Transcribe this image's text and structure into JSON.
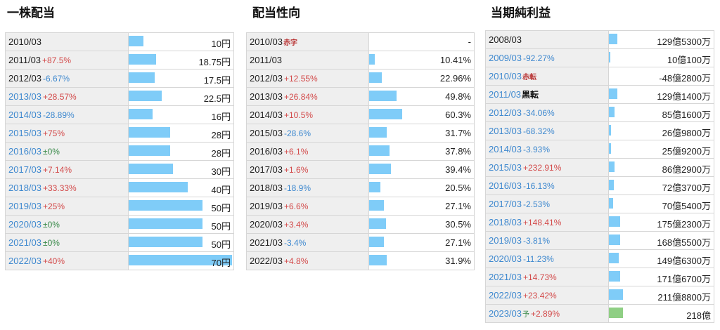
{
  "sections": [
    {
      "title": "一株配当",
      "rows": [
        {
          "year": "2010/03",
          "year_color": "black",
          "change": "",
          "change_type": "",
          "tag": "",
          "value": "10円",
          "bar": 0.143
        },
        {
          "year": "2011/03",
          "year_color": "black",
          "change": "+87.5%",
          "change_type": "pos",
          "tag": "",
          "value": "18.75円",
          "bar": 0.268
        },
        {
          "year": "2012/03",
          "year_color": "black",
          "change": "-6.67%",
          "change_type": "neg",
          "tag": "",
          "value": "17.5円",
          "bar": 0.25
        },
        {
          "year": "2013/03",
          "year_color": "blue",
          "change": "+28.57%",
          "change_type": "pos",
          "tag": "",
          "value": "22.5円",
          "bar": 0.321
        },
        {
          "year": "2014/03",
          "year_color": "blue",
          "change": "-28.89%",
          "change_type": "neg",
          "tag": "",
          "value": "16円",
          "bar": 0.229
        },
        {
          "year": "2015/03",
          "year_color": "blue",
          "change": "+75%",
          "change_type": "pos",
          "tag": "",
          "value": "28円",
          "bar": 0.4
        },
        {
          "year": "2016/03",
          "year_color": "blue",
          "change": "±0%",
          "change_type": "zero",
          "tag": "",
          "value": "28円",
          "bar": 0.4
        },
        {
          "year": "2017/03",
          "year_color": "blue",
          "change": "+7.14%",
          "change_type": "pos",
          "tag": "",
          "value": "30円",
          "bar": 0.429
        },
        {
          "year": "2018/03",
          "year_color": "blue",
          "change": "+33.33%",
          "change_type": "pos",
          "tag": "",
          "value": "40円",
          "bar": 0.571
        },
        {
          "year": "2019/03",
          "year_color": "blue",
          "change": "+25%",
          "change_type": "pos",
          "tag": "",
          "value": "50円",
          "bar": 0.714
        },
        {
          "year": "2020/03",
          "year_color": "blue",
          "change": "±0%",
          "change_type": "zero",
          "tag": "",
          "value": "50円",
          "bar": 0.714
        },
        {
          "year": "2021/03",
          "year_color": "blue",
          "change": "±0%",
          "change_type": "zero",
          "tag": "",
          "value": "50円",
          "bar": 0.714
        },
        {
          "year": "2022/03",
          "year_color": "blue",
          "change": "+40%",
          "change_type": "pos",
          "tag": "",
          "value": "70円",
          "bar": 1.0
        }
      ]
    },
    {
      "title": "配当性向",
      "rows": [
        {
          "year": "2010/03",
          "year_color": "black",
          "change": "",
          "change_type": "",
          "tag": "赤字",
          "value": "-",
          "bar": 0
        },
        {
          "year": "2011/03",
          "year_color": "black",
          "change": "",
          "change_type": "",
          "tag": "",
          "value": "10.41%",
          "bar": 0.104
        },
        {
          "year": "2012/03",
          "year_color": "black",
          "change": "+12.55%",
          "change_type": "pos",
          "tag": "",
          "value": "22.96%",
          "bar": 0.23
        },
        {
          "year": "2013/03",
          "year_color": "black",
          "change": "+26.84%",
          "change_type": "pos",
          "tag": "",
          "value": "49.8%",
          "bar": 0.498
        },
        {
          "year": "2014/03",
          "year_color": "black",
          "change": "+10.5%",
          "change_type": "pos",
          "tag": "",
          "value": "60.3%",
          "bar": 0.603
        },
        {
          "year": "2015/03",
          "year_color": "black",
          "change": "-28.6%",
          "change_type": "neg",
          "tag": "",
          "value": "31.7%",
          "bar": 0.317
        },
        {
          "year": "2016/03",
          "year_color": "black",
          "change": "+6.1%",
          "change_type": "pos",
          "tag": "",
          "value": "37.8%",
          "bar": 0.378
        },
        {
          "year": "2017/03",
          "year_color": "black",
          "change": "+1.6%",
          "change_type": "pos",
          "tag": "",
          "value": "39.4%",
          "bar": 0.394
        },
        {
          "year": "2018/03",
          "year_color": "black",
          "change": "-18.9%",
          "change_type": "neg",
          "tag": "",
          "value": "20.5%",
          "bar": 0.205
        },
        {
          "year": "2019/03",
          "year_color": "black",
          "change": "+6.6%",
          "change_type": "pos",
          "tag": "",
          "value": "27.1%",
          "bar": 0.271
        },
        {
          "year": "2020/03",
          "year_color": "black",
          "change": "+3.4%",
          "change_type": "pos",
          "tag": "",
          "value": "30.5%",
          "bar": 0.305
        },
        {
          "year": "2021/03",
          "year_color": "black",
          "change": "-3.4%",
          "change_type": "neg",
          "tag": "",
          "value": "27.1%",
          "bar": 0.271
        },
        {
          "year": "2022/03",
          "year_color": "black",
          "change": "+4.8%",
          "change_type": "pos",
          "tag": "",
          "value": "31.9%",
          "bar": 0.319
        }
      ]
    },
    {
      "title": "当期純利益",
      "rows": [
        {
          "year": "2008/03",
          "year_color": "black",
          "change": "",
          "change_type": "",
          "tag": "",
          "value": "129億5300万",
          "bar": 0.153,
          "bar_color": "blue"
        },
        {
          "year": "2009/03",
          "year_color": "blue",
          "change": "-92.27%",
          "change_type": "neg",
          "tag": "",
          "value": "10億100万",
          "bar": 0.02,
          "bar_color": "blue"
        },
        {
          "year": "2010/03",
          "year_color": "blue",
          "change": "",
          "change_type": "",
          "tag": "赤転",
          "tag_style": "red",
          "value": "-48億2800万",
          "bar": 0,
          "bar_color": "blue"
        },
        {
          "year": "2011/03",
          "year_color": "blue",
          "change": "",
          "change_type": "",
          "tag": "黒転",
          "tag_style": "black",
          "value": "129億1400万",
          "bar": 0.153,
          "bar_color": "blue"
        },
        {
          "year": "2012/03",
          "year_color": "blue",
          "change": "-34.06%",
          "change_type": "neg",
          "tag": "",
          "value": "85億1600万",
          "bar": 0.1,
          "bar_color": "blue"
        },
        {
          "year": "2013/03",
          "year_color": "blue",
          "change": "-68.32%",
          "change_type": "neg",
          "tag": "",
          "value": "26億9800万",
          "bar": 0.04,
          "bar_color": "blue"
        },
        {
          "year": "2014/03",
          "year_color": "blue",
          "change": "-3.93%",
          "change_type": "neg",
          "tag": "",
          "value": "25億9200万",
          "bar": 0.038,
          "bar_color": "blue"
        },
        {
          "year": "2015/03",
          "year_color": "blue",
          "change": "+232.91%",
          "change_type": "pos",
          "tag": "",
          "value": "86億2900万",
          "bar": 0.1,
          "bar_color": "blue"
        },
        {
          "year": "2016/03",
          "year_color": "blue",
          "change": "-16.13%",
          "change_type": "neg",
          "tag": "",
          "value": "72億3700万",
          "bar": 0.085,
          "bar_color": "blue"
        },
        {
          "year": "2017/03",
          "year_color": "blue",
          "change": "-2.53%",
          "change_type": "neg",
          "tag": "",
          "value": "70億5400万",
          "bar": 0.083,
          "bar_color": "blue"
        },
        {
          "year": "2018/03",
          "year_color": "blue",
          "change": "+148.41%",
          "change_type": "pos",
          "tag": "",
          "value": "175億2300万",
          "bar": 0.207,
          "bar_color": "blue"
        },
        {
          "year": "2019/03",
          "year_color": "blue",
          "change": "-3.81%",
          "change_type": "neg",
          "tag": "",
          "value": "168億5500万",
          "bar": 0.2,
          "bar_color": "blue"
        },
        {
          "year": "2020/03",
          "year_color": "blue",
          "change": "-11.23%",
          "change_type": "neg",
          "tag": "",
          "value": "149億6300万",
          "bar": 0.177,
          "bar_color": "blue"
        },
        {
          "year": "2021/03",
          "year_color": "blue",
          "change": "+14.73%",
          "change_type": "pos",
          "tag": "",
          "value": "171億6700万",
          "bar": 0.203,
          "bar_color": "blue"
        },
        {
          "year": "2022/03",
          "year_color": "blue",
          "change": "+23.42%",
          "change_type": "pos",
          "tag": "",
          "value": "211億8800万",
          "bar": 0.25,
          "bar_color": "blue"
        },
        {
          "year": "2023/03",
          "year_color": "blue",
          "change": "+2.89%",
          "change_type": "pos",
          "tag": "予",
          "tag_style": "green",
          "value": "218億",
          "bar": 0.258,
          "bar_color": "green"
        }
      ]
    }
  ],
  "colors": {
    "bar_blue": "#7fccf8",
    "bar_green": "#8fcf84",
    "positive": "#d34b4b",
    "negative": "#3f89cf",
    "zero": "#3a8a4a"
  }
}
